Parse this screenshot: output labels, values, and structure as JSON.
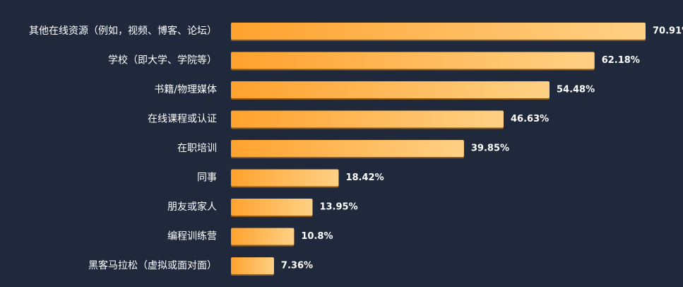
{
  "chart_data": {
    "type": "bar",
    "orientation": "horizontal",
    "categories": [
      "其他在线资源（例如，视频、博客、论坛）",
      "学校（即大学、学院等）",
      "书籍/物理媒体",
      "在线课程或认证",
      "在职培训",
      "同事",
      "朋友或家人",
      "编程训练营",
      "黑客马拉松（虚拟或面对面）"
    ],
    "values": [
      70.91,
      62.18,
      54.48,
      46.63,
      39.85,
      18.42,
      13.95,
      10.8,
      7.36
    ],
    "value_labels": [
      "70.91%",
      "62.18%",
      "54.48%",
      "46.63%",
      "39.85%",
      "18.42%",
      "13.95%",
      "10.8%",
      "7.36%"
    ],
    "xlim": [
      0,
      70.91
    ],
    "grid": false,
    "colors": {
      "bar_start": "#ffa22e",
      "bar_end": "#ffd185",
      "background": "#1f293b",
      "text": "#ffffff"
    }
  }
}
